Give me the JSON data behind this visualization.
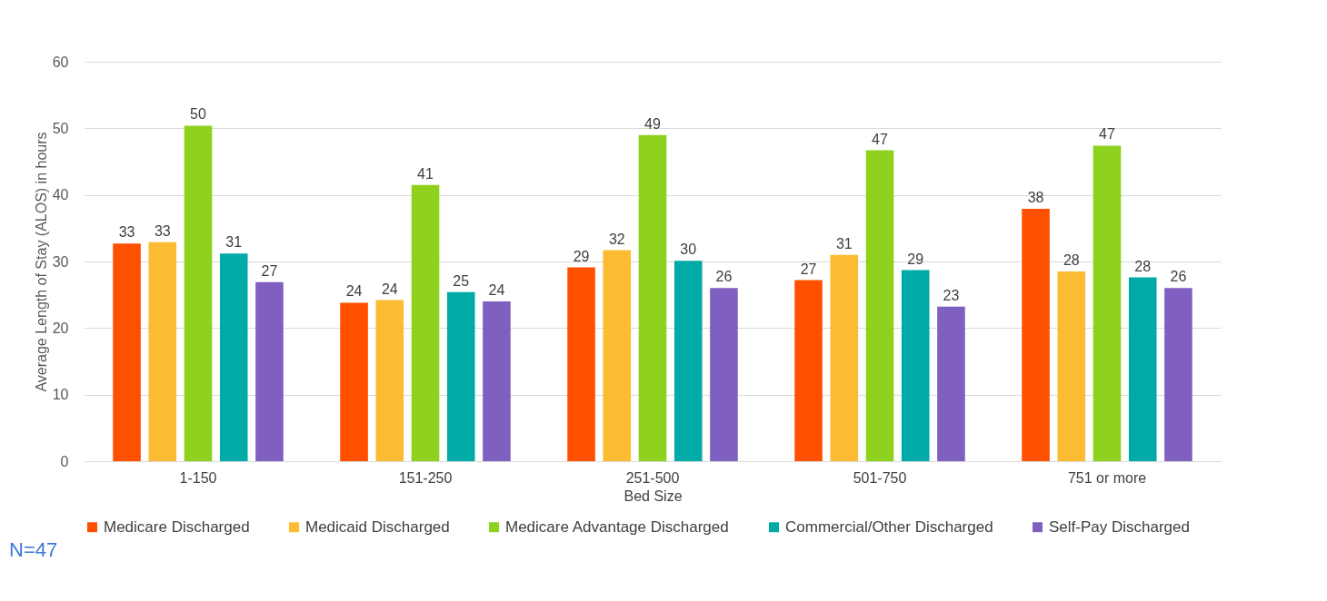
{
  "chart_data": {
    "type": "bar",
    "xlabel": "Bed Size",
    "ylabel": "Average Length of Stay (ALOS) in hours",
    "categories": [
      "1-150",
      "151-250",
      "251-500",
      "501-750",
      "751 or more"
    ],
    "series": [
      {
        "name": "Medicare Discharged",
        "color": "#ff5000",
        "values": [
          32.7,
          23.8,
          29.1,
          27.2,
          37.9
        ],
        "value_labels": [
          "33",
          "24",
          "29",
          "27",
          "38"
        ]
      },
      {
        "name": "Medicaid Discharged",
        "color": "#fbbc33",
        "values": [
          32.9,
          24.2,
          31.7,
          31.0,
          28.5
        ],
        "value_labels": [
          "33",
          "24",
          "32",
          "31",
          "28"
        ]
      },
      {
        "name": "Medicare Advantage Discharged",
        "color": "#8fd11f",
        "values": [
          50.4,
          41.5,
          49.0,
          46.7,
          47.4
        ],
        "value_labels": [
          "50",
          "41",
          "49",
          "47",
          "47"
        ]
      },
      {
        "name": "Commercial/Other Discharged",
        "color": "#00aaa7",
        "values": [
          31.2,
          25.4,
          30.1,
          28.7,
          27.6
        ],
        "value_labels": [
          "31",
          "25",
          "30",
          "29",
          "28"
        ]
      },
      {
        "name": "Self-Pay Discharged",
        "color": "#7f5fbf",
        "values": [
          26.9,
          24.0,
          26.0,
          23.2,
          26.0
        ],
        "value_labels": [
          "27",
          "24",
          "26",
          "23",
          "26"
        ]
      }
    ],
    "ylim": [
      0,
      60
    ],
    "yticks": [
      0,
      10,
      20,
      30,
      40,
      50,
      60
    ],
    "grid": "y",
    "legend": "bottom",
    "annotations": [
      "N=47"
    ]
  }
}
